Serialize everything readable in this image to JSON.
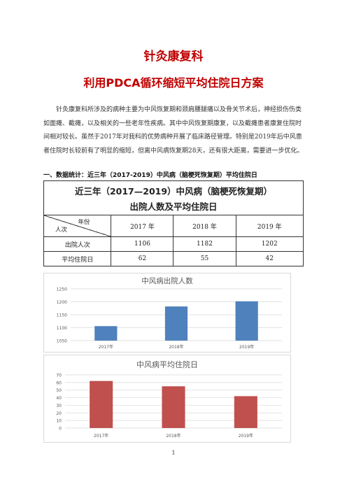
{
  "document": {
    "title": "针灸康复科",
    "subtitle": "利用PDCA循环缩短平均住院日方案",
    "paragraph": "针灸康复科所涉及的病种主要为中风恢复期和颈肩腰腿痛以及骨关节术后，神经损伤伤类如面瘫、截瘫，以及相关的一些老年性疾病。其中中风恢复期康复，以及截瘫患者康复住院时间相对较长。虽然于2017年对我科的优势病种开展了临床路径管理。特别是2019年后中风患者住院时长较前有了明显的缩短，但离中风病恢复期28天，还有很大距离，需要进一步优化。",
    "section_heading": "一、数据统计：近三年（2017-2019）中风病（脑梗死恢复期）平均住院日",
    "page_number": "1"
  },
  "table": {
    "caption_line1": "近三年（2017—2019）中风病（脑梗死恢复期）",
    "caption_line2": "出院人数及平均住院日",
    "corner_top": "年份",
    "corner_bottom": "人次",
    "years": [
      "2017 年",
      "2018 年",
      "2019 年"
    ],
    "rows": [
      {
        "label": "出院人次",
        "values": [
          "1106",
          "1182",
          "1202"
        ]
      },
      {
        "label": "平均住院日",
        "values": [
          "62",
          "55",
          "42"
        ]
      }
    ]
  },
  "chart_data": [
    {
      "type": "bar",
      "title": "中风病出院人数",
      "categories": [
        "2017年",
        "2018年",
        "2019年"
      ],
      "values": [
        1106,
        1182,
        1202
      ],
      "ylim": [
        1050,
        1250
      ],
      "yticks": [
        "1050",
        "1100",
        "1150",
        "1200",
        "1250"
      ],
      "grid": true,
      "color": "#4f81bd"
    },
    {
      "type": "bar",
      "title": "中风病平均住院日",
      "categories": [
        "2017年",
        "2018年",
        "2019年"
      ],
      "values": [
        62,
        55,
        42
      ],
      "ylim": [
        0,
        70
      ],
      "yticks": [
        "0",
        "10",
        "20",
        "30",
        "40",
        "50",
        "60",
        "70"
      ],
      "grid": true,
      "color": "#c0504d"
    }
  ]
}
